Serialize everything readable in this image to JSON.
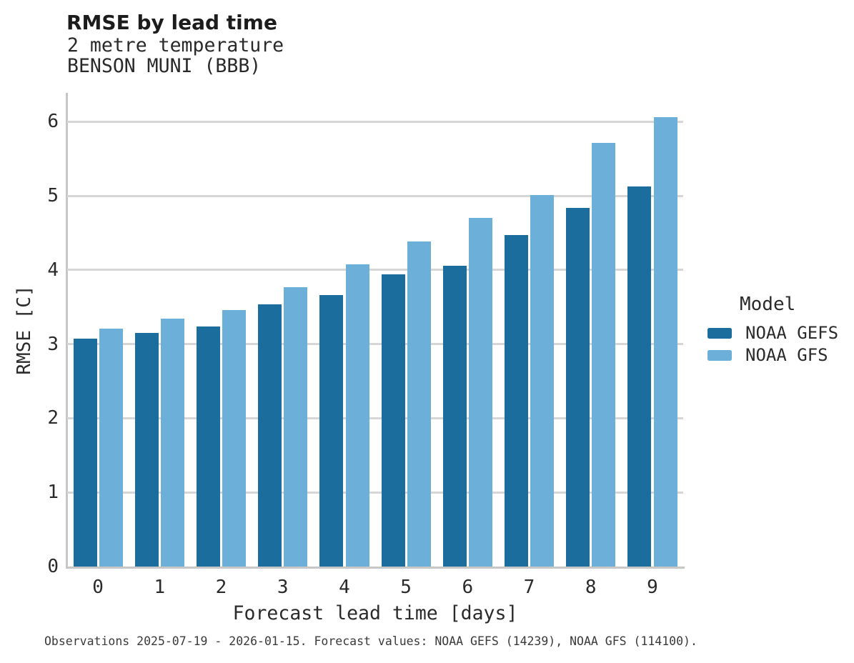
{
  "header": {
    "title": "RMSE by lead time",
    "subtitle_variable": "2 metre temperature",
    "subtitle_station": "BENSON MUNI (BBB)"
  },
  "chart_data": {
    "type": "bar",
    "title": "RMSE by lead time",
    "subtitle": "2 metre temperature",
    "station": "BENSON MUNI (BBB)",
    "xlabel": "Forecast lead time [days]",
    "ylabel": "RMSE [C]",
    "categories": [
      "0",
      "1",
      "2",
      "3",
      "4",
      "5",
      "6",
      "7",
      "8",
      "9"
    ],
    "series": [
      {
        "name": "NOAA GEFS",
        "color": "#1b6d9e",
        "values": [
          3.07,
          3.15,
          3.24,
          3.54,
          3.66,
          3.94,
          4.06,
          4.47,
          4.84,
          5.13
        ]
      },
      {
        "name": "NOAA GFS",
        "color": "#6cb0d9",
        "values": [
          3.21,
          3.34,
          3.46,
          3.77,
          4.08,
          4.39,
          4.7,
          5.01,
          5.72,
          6.06
        ]
      }
    ],
    "ylim": [
      0,
      6.39
    ],
    "yticks": [
      0,
      1,
      2,
      3,
      4,
      5,
      6
    ],
    "grid": "horizontal-only",
    "legend_title": "Model",
    "legend_position": "right-middle"
  },
  "legend": {
    "title": "Model",
    "items": [
      {
        "label": "NOAA GEFS",
        "color": "#1b6d9e"
      },
      {
        "label": "NOAA GFS",
        "color": "#6cb0d9"
      }
    ]
  },
  "footer": {
    "text": "Observations 2025-07-19 - 2026-01-15. Forecast values: NOAA GEFS (14239), NOAA GFS (114100)."
  },
  "colors": {
    "series_dark": "#1b6d9e",
    "series_light": "#6cb0d9",
    "gridline": "#d6d6d6",
    "spine": "#c7c7c7"
  }
}
